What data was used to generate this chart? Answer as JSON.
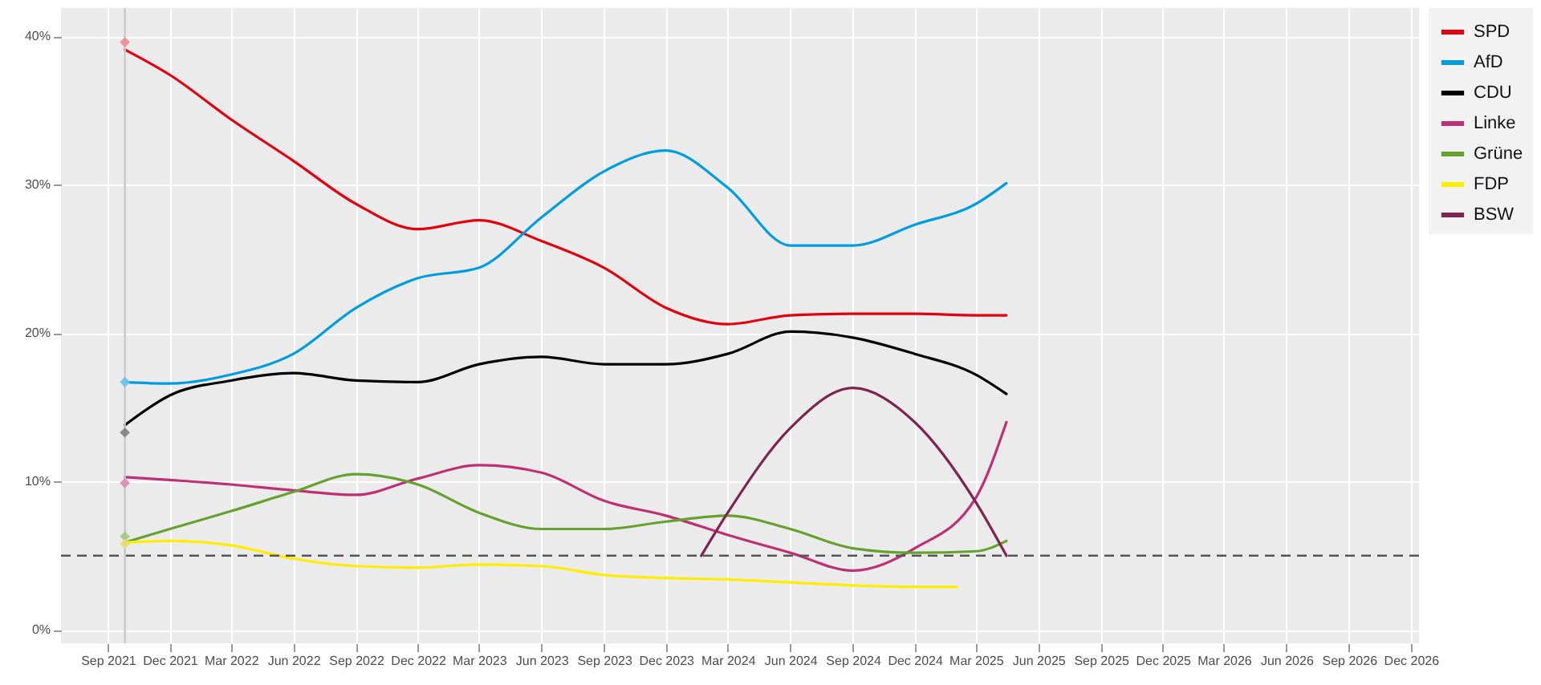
{
  "chart_data": {
    "type": "line",
    "xlim": [
      "2021-06-24",
      "2026-12-13"
    ],
    "ylim": [
      -0.9,
      41.9
    ],
    "xticks": [
      {
        "value": "2021-09-01",
        "label": "Sep 2021"
      },
      {
        "value": "2021-12-01",
        "label": "Dec 2021"
      },
      {
        "value": "2022-03-01",
        "label": "Mar 2022"
      },
      {
        "value": "2022-06-01",
        "label": "Jun 2022"
      },
      {
        "value": "2022-09-01",
        "label": "Sep 2022"
      },
      {
        "value": "2022-12-01",
        "label": "Dec 2022"
      },
      {
        "value": "2023-03-01",
        "label": "Mar 2023"
      },
      {
        "value": "2023-06-01",
        "label": "Jun 2023"
      },
      {
        "value": "2023-09-01",
        "label": "Sep 2023"
      },
      {
        "value": "2023-12-01",
        "label": "Dec 2023"
      },
      {
        "value": "2024-03-01",
        "label": "Mar 2024"
      },
      {
        "value": "2024-06-01",
        "label": "Jun 2024"
      },
      {
        "value": "2024-09-01",
        "label": "Sep 2024"
      },
      {
        "value": "2024-12-01",
        "label": "Dec 2024"
      },
      {
        "value": "2025-03-01",
        "label": "Mar 2025"
      },
      {
        "value": "2025-06-01",
        "label": "Jun 2025"
      },
      {
        "value": "2025-09-01",
        "label": "Sep 2025"
      },
      {
        "value": "2025-12-01",
        "label": "Dec 2025"
      },
      {
        "value": "2026-03-01",
        "label": "Mar 2026"
      },
      {
        "value": "2026-06-01",
        "label": "Jun 2026"
      },
      {
        "value": "2026-09-01",
        "label": "Sep 2026"
      },
      {
        "value": "2026-12-01",
        "label": "Dec 2026"
      }
    ],
    "yticks": [
      {
        "value": 0,
        "label": "0%"
      },
      {
        "value": 10,
        "label": "10%"
      },
      {
        "value": 20,
        "label": "20%"
      },
      {
        "value": 30,
        "label": "30%"
      },
      {
        "value": 40,
        "label": "40%"
      }
    ],
    "grid": true,
    "legend": "right",
    "marker": "none",
    "line_style": "solid",
    "x": [
      "2021-09-26",
      "2021-12-01",
      "2022-03-01",
      "2022-06-01",
      "2022-09-01",
      "2022-12-01",
      "2023-03-01",
      "2023-06-01",
      "2023-09-01",
      "2023-12-01",
      "2024-03-01",
      "2024-06-01",
      "2024-09-01",
      "2024-12-01",
      "2025-03-01",
      "2025-04-15"
    ],
    "series": [
      {
        "name": "SPD",
        "color": "#e3000f",
        "values": [
          39.1,
          37.4,
          34.4,
          31.6,
          28.7,
          27.0,
          27.6,
          26.2,
          24.4,
          21.7,
          20.6,
          21.2,
          21.3,
          21.3,
          21.2,
          21.2
        ]
      },
      {
        "name": "AfD",
        "color": "#009ee0",
        "values": [
          16.7,
          16.6,
          17.2,
          18.6,
          21.7,
          23.7,
          24.4,
          27.8,
          30.9,
          32.3,
          29.8,
          25.9,
          25.9,
          27.3,
          28.7,
          30.1
        ]
      },
      {
        "name": "CDU",
        "color": "#000000",
        "values": [
          13.8,
          15.8,
          16.8,
          17.3,
          16.8,
          16.7,
          17.9,
          18.4,
          17.9,
          17.9,
          18.6,
          20.1,
          19.7,
          18.6,
          17.2,
          15.9
        ]
      },
      {
        "name": "Linke",
        "color": "#be3075",
        "values": [
          10.3,
          10.1,
          9.8,
          9.4,
          9.1,
          10.2,
          11.1,
          10.6,
          8.7,
          7.7,
          6.4,
          5.2,
          4.0,
          5.5,
          8.9,
          14.0
        ]
      },
      {
        "name": "Grüne",
        "color": "#64a12d",
        "values": [
          5.9,
          6.8,
          8.0,
          9.3,
          10.5,
          9.8,
          7.9,
          6.8,
          6.8,
          7.3,
          7.7,
          6.8,
          5.5,
          5.2,
          5.3,
          6.0
        ]
      },
      {
        "name": "FDP",
        "color": "#ffed00",
        "x": [
          "2021-09-26",
          "2021-12-01",
          "2022-03-01",
          "2022-06-01",
          "2022-09-01",
          "2022-12-01",
          "2023-03-01",
          "2023-06-01",
          "2023-09-01",
          "2023-12-01",
          "2024-03-01",
          "2024-06-01",
          "2024-09-01",
          "2024-12-01",
          "2025-02-01"
        ],
        "values": [
          5.9,
          6.0,
          5.7,
          4.8,
          4.3,
          4.2,
          4.4,
          4.3,
          3.7,
          3.5,
          3.4,
          3.2,
          3.0,
          2.9,
          2.9
        ]
      },
      {
        "name": "BSW",
        "color": "#7d254f",
        "x": [
          "2024-01-22",
          "2024-03-01",
          "2024-06-01",
          "2024-09-01",
          "2024-12-01",
          "2025-03-01",
          "2025-04-15"
        ],
        "values": [
          5.0,
          7.9,
          13.6,
          16.3,
          14.0,
          8.6,
          5.0
        ]
      },
      {
        "type": "scatter",
        "marker": "diamond",
        "x": [
          "2021-09-26"
        ],
        "values": [
          39.6
        ],
        "color": "#f08a95"
      },
      {
        "type": "scatter",
        "marker": "diamond",
        "x": [
          "2021-09-26"
        ],
        "values": [
          16.7
        ],
        "color": "#66c3ee"
      },
      {
        "type": "scatter",
        "marker": "diamond",
        "x": [
          "2021-09-26"
        ],
        "values": [
          13.3
        ],
        "color": "#808080"
      },
      {
        "type": "scatter",
        "marker": "diamond",
        "x": [
          "2021-09-26"
        ],
        "values": [
          9.9
        ],
        "color": "#d98bb0"
      },
      {
        "type": "scatter",
        "marker": "diamond",
        "x": [
          "2021-09-26"
        ],
        "values": [
          6.3
        ],
        "color": "#a3c785"
      },
      {
        "type": "scatter",
        "marker": "diamond",
        "x": [
          "2021-09-26"
        ],
        "values": [
          5.8
        ],
        "color": "#e8dc70"
      }
    ],
    "ref_lines": [
      {
        "axis": "y",
        "value": 5,
        "color": "#555555",
        "line_style": "dashed"
      },
      {
        "axis": "x",
        "value": "2021-09-26",
        "color": "#c8c8c8",
        "line_style": "solid"
      }
    ]
  }
}
